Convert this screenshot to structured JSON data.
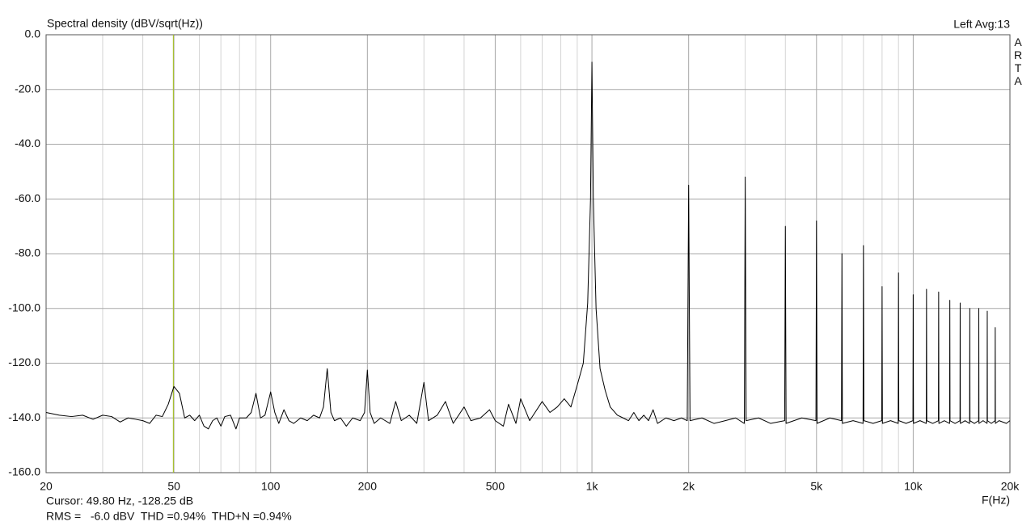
{
  "chart_data": {
    "type": "line",
    "title": "Spectral density (dBV/sqrt(Hz))",
    "channel": "Left  Avg:13",
    "brand": "ARTA",
    "xlabel": "F(Hz)",
    "cursor": {
      "value": 49.8,
      "label": "Cursor: 49.80 Hz, -128.25 dB"
    },
    "summary": "RMS =   -6.0 dBV  THD =0.94%  THD+N =0.94%",
    "log_x": true,
    "grid": true,
    "color": "#000000",
    "cursor_color": "#a8c030",
    "summary_color": "#c00000",
    "xlim": [
      20,
      20000
    ],
    "ylim": [
      -160,
      0
    ],
    "xticks": [
      20,
      50,
      100,
      200,
      500,
      {
        "value": 1000,
        "label": "1k"
      },
      {
        "value": 2000,
        "label": "2k"
      },
      {
        "value": 5000,
        "label": "5k"
      },
      {
        "value": 10000,
        "label": "10k"
      },
      {
        "value": 20000,
        "label": "20k"
      }
    ],
    "xgrid_minor": [
      30,
      40,
      60,
      70,
      80,
      90,
      300,
      400,
      600,
      700,
      800,
      900,
      3000,
      4000,
      6000,
      7000,
      8000,
      9000
    ],
    "yticks": [
      {
        "value": 0,
        "label": "0.0"
      },
      {
        "value": -20,
        "label": "-20.0"
      },
      {
        "value": -40,
        "label": "-40.0"
      },
      {
        "value": -60,
        "label": "-60.0"
      },
      {
        "value": -80,
        "label": "-80.0"
      },
      {
        "value": -100,
        "label": "-100.0"
      },
      {
        "value": -120,
        "label": "-120.0"
      },
      {
        "value": -140,
        "label": "-140.0"
      },
      {
        "value": -160,
        "label": "-160.0"
      }
    ],
    "x": [
      20,
      22,
      24,
      26,
      28,
      30,
      32,
      34,
      36,
      38,
      40,
      42,
      44,
      46,
      48,
      50,
      52,
      54,
      56,
      58,
      60,
      62,
      64,
      66,
      68,
      70,
      72,
      75,
      78,
      80,
      84,
      87,
      90,
      93,
      96,
      100,
      103,
      106,
      110,
      114,
      118,
      124,
      130,
      136,
      142,
      146,
      150,
      154,
      158,
      165,
      172,
      180,
      190,
      196,
      200,
      204,
      210,
      220,
      235,
      245,
      255,
      270,
      285,
      300,
      310,
      330,
      350,
      370,
      400,
      420,
      450,
      480,
      500,
      530,
      550,
      580,
      600,
      640,
      700,
      740,
      780,
      820,
      860,
      900,
      940,
      970,
      990,
      1000,
      1010,
      1030,
      1060,
      1100,
      1140,
      1200,
      1250,
      1300,
      1350,
      1400,
      1450,
      1500,
      1550,
      1600,
      1700,
      1800,
      1900,
      1980,
      2000,
      2020,
      2200,
      2400,
      2600,
      2800,
      2980,
      3000,
      3020,
      3300,
      3600,
      3980,
      4000,
      4020,
      4500,
      4980,
      5000,
      5020,
      5500,
      5980,
      6000,
      6020,
      6500,
      6980,
      7000,
      7020,
      7500,
      7980,
      8000,
      8020,
      8500,
      8980,
      9000,
      9020,
      9500,
      9980,
      10000,
      10020,
      10500,
      10980,
      11000,
      11020,
      11500,
      11980,
      12000,
      12020,
      12500,
      12980,
      13000,
      13020,
      13500,
      13980,
      14000,
      14020,
      14500,
      14980,
      15000,
      15020,
      15500,
      15980,
      16000,
      16020,
      16500,
      16980,
      17000,
      17020,
      17500,
      17980,
      18000,
      18020,
      18500,
      19500,
      20000
    ],
    "values": [
      -138,
      -139,
      -139.5,
      -139,
      -140.5,
      -139,
      -139.5,
      -141.5,
      -140,
      -140.5,
      -141,
      -142,
      -139,
      -139.5,
      -135,
      -128.5,
      -131,
      -140,
      -139,
      -141,
      -139,
      -143,
      -144,
      -141,
      -140,
      -143,
      -139.5,
      -139,
      -144,
      -140,
      -140,
      -138,
      -131,
      -140,
      -139,
      -130.5,
      -138,
      -142,
      -137,
      -141,
      -142,
      -140,
      -141,
      -139,
      -140,
      -136,
      -122,
      -138,
      -141,
      -140,
      -143,
      -140,
      -141,
      -138,
      -122.5,
      -138,
      -142,
      -140,
      -142,
      -134,
      -141,
      -139,
      -142,
      -127,
      -141,
      -139,
      -134,
      -142,
      -136,
      -141,
      -140,
      -137,
      -141,
      -143,
      -135,
      -142,
      -133,
      -141,
      -134,
      -138,
      -136,
      -133,
      -136,
      -128,
      -120,
      -98,
      -60,
      -10,
      -60,
      -100,
      -122,
      -130,
      -136,
      -139,
      -140,
      -141,
      -138,
      -141,
      -139,
      -141,
      -137,
      -142,
      -140,
      -141,
      -140,
      -141,
      -55,
      -141,
      -140,
      -142,
      -141,
      -140,
      -142,
      -52,
      -141,
      -140,
      -142,
      -141,
      -70,
      -142,
      -140,
      -141,
      -68,
      -142,
      -140,
      -141,
      -80,
      -142,
      -141,
      -142,
      -77,
      -141,
      -142,
      -141,
      -92,
      -142,
      -141,
      -142,
      -87,
      -141,
      -142,
      -141,
      -95,
      -142,
      -141,
      -142,
      -93,
      -141,
      -142,
      -141,
      -94,
      -142,
      -141,
      -142,
      -97,
      -141,
      -142,
      -141,
      -98,
      -142,
      -141,
      -142,
      -100,
      -141,
      -142,
      -141,
      -100,
      -142,
      -141,
      -142,
      -101,
      -141,
      -142,
      -141,
      -107,
      -142,
      -141,
      -142,
      -141
    ]
  }
}
